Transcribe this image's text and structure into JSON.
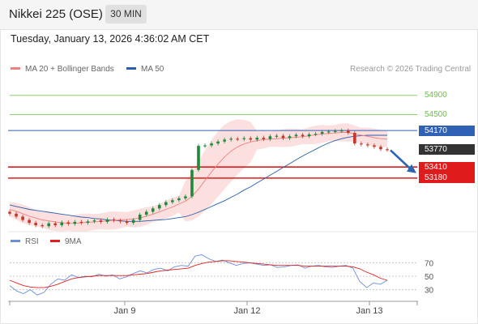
{
  "header": {
    "title": "Nikkei 225 (OSE)",
    "timeframe": "30 MIN"
  },
  "datetime": "Tuesday, January 13, 2026 4:36:02 AM CET",
  "legend": {
    "ma20_label": "MA 20 + Bollinger Bands",
    "ma50_label": "MA 50",
    "ma20_color": "#f08080",
    "ma50_color": "#2a5ea8"
  },
  "research": "Research © 2026 Trading Central",
  "price_labels": [
    {
      "value": "54900",
      "kind": "resistance"
    },
    {
      "value": "54500",
      "kind": "resistance"
    },
    {
      "value": "54170",
      "kind": "pivot"
    },
    {
      "value": "53770",
      "kind": "last"
    },
    {
      "value": "53410",
      "kind": "support"
    },
    {
      "value": "53180",
      "kind": "support"
    }
  ],
  "rsi_legend": {
    "rsi_label": "RSI",
    "ma_label": "9MA",
    "rsi_color": "#6b8fd8",
    "ma_color": "#e02020"
  },
  "rsi_levels": [
    "70",
    "50",
    "30"
  ],
  "x_labels": [
    "Jan 9",
    "Jan 12",
    "Jan 13"
  ],
  "colors": {
    "up": "#1e8a3c",
    "down": "#c0392b",
    "resistance": "#8ccf6b",
    "support": "#e01b1b",
    "pivot": "#2f62b5",
    "last": "#333333"
  },
  "chart_data": {
    "type": "line",
    "y_range": [
      52100,
      55300
    ],
    "price_levels": {
      "resistance": [
        54900,
        54500
      ],
      "pivot": 54170,
      "last": 53770,
      "support": [
        53410,
        53180
      ]
    },
    "close_series": [
      52440,
      52380,
      52310,
      52250,
      52200,
      52180,
      52240,
      52200,
      52260,
      52230,
      52270,
      52250,
      52280,
      52300,
      52270,
      52320,
      52300,
      52280,
      52250,
      52310,
      52420,
      52480,
      52550,
      52620,
      52680,
      52720,
      52760,
      52800,
      53350,
      53850,
      53860,
      53900,
      53940,
      53980,
      54000,
      53990,
      54010,
      53980,
      54020,
      53990,
      54050,
      54060,
      54010,
      54050,
      54080,
      54050,
      54090,
      54100,
      54140,
      54150,
      54160,
      54170,
      54120,
      53900,
      53880,
      53860,
      53830,
      53780,
      53770
    ],
    "ma20_series": [
      52530,
      52490,
      52440,
      52390,
      52350,
      52310,
      52290,
      52270,
      52250,
      52240,
      52240,
      52250,
      52260,
      52270,
      52280,
      52290,
      52300,
      52310,
      52320,
      52330,
      52350,
      52390,
      52430,
      52480,
      52530,
      52580,
      52640,
      52700,
      52800,
      52950,
      53130,
      53310,
      53470,
      53620,
      53740,
      53830,
      53890,
      53930,
      53960,
      53980,
      53990,
      54000,
      54010,
      54020,
      54030,
      54040,
      54060,
      54080,
      54100,
      54110,
      54120,
      54130,
      54130,
      54100,
      54070,
      54050,
      54020,
      54000,
      53990
    ],
    "ma50_series": [
      52620,
      52590,
      52560,
      52530,
      52510,
      52490,
      52470,
      52450,
      52430,
      52410,
      52390,
      52370,
      52360,
      52340,
      52330,
      52310,
      52300,
      52290,
      52280,
      52280,
      52280,
      52290,
      52300,
      52310,
      52320,
      52340,
      52360,
      52380,
      52420,
      52470,
      52530,
      52590,
      52650,
      52710,
      52780,
      52850,
      52930,
      53000,
      53080,
      53160,
      53240,
      53320,
      53400,
      53480,
      53560,
      53640,
      53710,
      53780,
      53850,
      53910,
      53960,
      54000,
      54030,
      54050,
      54060,
      54070,
      54070,
      54070,
      54070
    ],
    "rsi": {
      "levels": [
        70,
        50,
        30
      ],
      "range": [
        15,
        85
      ],
      "rsi_series": [
        36,
        28,
        24,
        30,
        22,
        26,
        38,
        46,
        44,
        52,
        48,
        50,
        49,
        53,
        50,
        52,
        46,
        49,
        54,
        58,
        55,
        60,
        62,
        58,
        64,
        66,
        65,
        80,
        82,
        76,
        72,
        74,
        70,
        66,
        69,
        70,
        68,
        66,
        67,
        63,
        64,
        66,
        67,
        62,
        65,
        66,
        64,
        63,
        65,
        66,
        62,
        42,
        33,
        40,
        38,
        44
      ],
      "ma9_series": [
        44,
        40,
        36,
        34,
        33,
        33,
        35,
        38,
        42,
        46,
        48,
        49,
        50,
        51,
        51,
        51,
        51,
        51,
        52,
        53,
        54,
        56,
        58,
        59,
        60,
        61,
        62,
        66,
        69,
        71,
        72,
        73,
        73,
        72,
        71,
        70,
        69,
        68,
        67,
        66,
        66,
        66,
        66,
        65,
        65,
        65,
        65,
        65,
        65,
        65,
        64,
        61,
        56,
        52,
        47,
        44
      ]
    },
    "x_tick_labels": [
      "Jan 9",
      "Jan 12",
      "Jan 13"
    ]
  }
}
